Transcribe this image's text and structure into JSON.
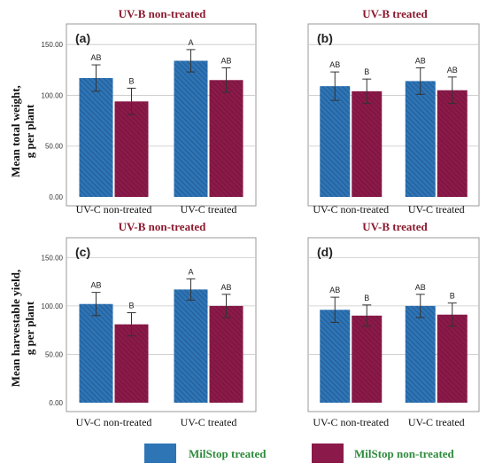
{
  "chart_data": [
    {
      "type": "bar",
      "panel": "(a)",
      "title": "UV-B non-treated",
      "categories": [
        "UV-C non-treated",
        "UV-C treated"
      ],
      "series": [
        {
          "name": "MilStop treated",
          "values": [
            117,
            134
          ],
          "error": [
            13,
            11
          ],
          "letters": [
            "AB",
            "A"
          ]
        },
        {
          "name": "MilStop non-treated",
          "values": [
            94,
            115
          ],
          "error": [
            13,
            12
          ],
          "letters": [
            "B",
            "AB"
          ]
        }
      ],
      "yticks": [
        "0.00",
        "50.00",
        "100.00",
        "150.00"
      ],
      "ylim": [
        0,
        165
      ]
    },
    {
      "type": "bar",
      "panel": "(b)",
      "title": "UV-B treated",
      "categories": [
        "UV-C non-treated",
        "UV-C treated"
      ],
      "series": [
        {
          "name": "MilStop treated",
          "values": [
            109,
            114
          ],
          "error": [
            14,
            13
          ],
          "letters": [
            "AB",
            "AB"
          ]
        },
        {
          "name": "MilStop non-treated",
          "values": [
            104,
            105
          ],
          "error": [
            12,
            13
          ],
          "letters": [
            "B",
            "AB"
          ]
        }
      ],
      "yticks": [],
      "ylim": [
        0,
        165
      ]
    },
    {
      "type": "bar",
      "panel": "(c)",
      "title": "UV-B non-treated",
      "categories": [
        "UV-C non-treated",
        "UV-C treated"
      ],
      "series": [
        {
          "name": "MilStop treated",
          "values": [
            102,
            117
          ],
          "error": [
            12,
            11
          ],
          "letters": [
            "AB",
            "A"
          ]
        },
        {
          "name": "MilStop non-treated",
          "values": [
            81,
            100
          ],
          "error": [
            12,
            12
          ],
          "letters": [
            "B",
            "AB"
          ]
        }
      ],
      "yticks": [
        "0.00",
        "50.00",
        "100.00",
        "150.00"
      ],
      "ylim": [
        0,
        165
      ]
    },
    {
      "type": "bar",
      "panel": "(d)",
      "title": "UV-B treated",
      "categories": [
        "UV-C non-treated",
        "UV-C treated"
      ],
      "series": [
        {
          "name": "MilStop treated",
          "values": [
            96,
            100
          ],
          "error": [
            13,
            12
          ],
          "letters": [
            "AB",
            "AB"
          ]
        },
        {
          "name": "MilStop non-treated",
          "values": [
            90,
            91
          ],
          "error": [
            11,
            12
          ],
          "letters": [
            "B",
            "B"
          ]
        }
      ],
      "yticks": [],
      "ylim": [
        0,
        165
      ]
    }
  ],
  "ylabels": {
    "top": [
      "Mean total weight,",
      "g per plant"
    ],
    "bottom": [
      "Mean harvestable yield,",
      "g per plant"
    ]
  },
  "legend": [
    {
      "label": "MilStop treated",
      "color": "#2e75b6"
    },
    {
      "label": "MilStop non-treated",
      "color": "#8b1a4a"
    }
  ],
  "colors": {
    "blue": "#2e75b6",
    "blue_hatch": "#1f4f86",
    "maroon": "#8b1a4a",
    "maroon_hatch": "#6e1236",
    "title": "#8b1a2e"
  }
}
